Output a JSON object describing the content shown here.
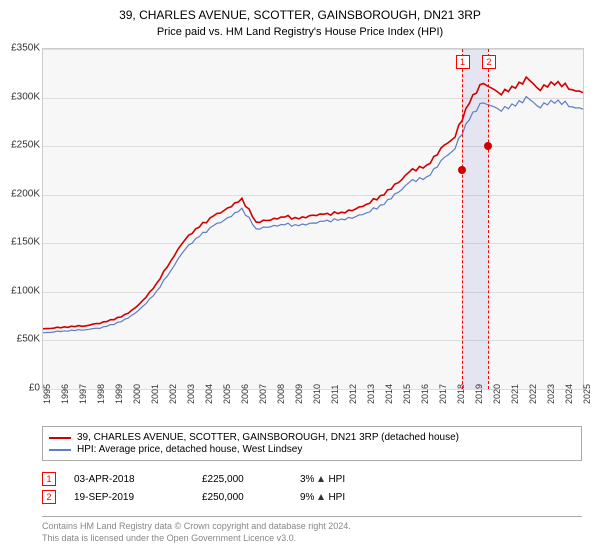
{
  "title": "39, CHARLES AVENUE, SCOTTER, GAINSBOROUGH, DN21 3RP",
  "subtitle": "Price paid vs. HM Land Registry's House Price Index (HPI)",
  "chart": {
    "type": "line",
    "background_color": "#f7f7f7",
    "grid_color": "#dddddd",
    "border_color": "#cccccc",
    "ylim": [
      0,
      350000
    ],
    "ytick_step": 50000,
    "yticks": [
      "£0",
      "£50K",
      "£100K",
      "£150K",
      "£200K",
      "£250K",
      "£300K",
      "£350K"
    ],
    "xrange": [
      1995,
      2025
    ],
    "xticks": [
      1995,
      1996,
      1997,
      1998,
      1999,
      2000,
      2001,
      2002,
      2003,
      2004,
      2005,
      2006,
      2007,
      2008,
      2009,
      2010,
      2011,
      2012,
      2013,
      2014,
      2015,
      2016,
      2017,
      2018,
      2019,
      2020,
      2021,
      2022,
      2023,
      2024,
      2025
    ],
    "series": [
      {
        "name": "property",
        "color": "#d00000",
        "width": 1.6,
        "values": [
          62,
          63,
          64,
          65,
          68,
          72,
          78,
          90,
          108,
          132,
          155,
          168,
          178,
          185,
          195,
          172,
          175,
          178,
          175,
          178,
          180,
          182,
          186,
          192,
          200,
          212,
          226,
          230,
          248,
          260,
          295,
          315,
          305,
          310,
          320,
          308,
          315,
          310,
          305
        ]
      },
      {
        "name": "hpi",
        "color": "#5a7fc4",
        "width": 1.2,
        "values": [
          58,
          59,
          60,
          61,
          63,
          67,
          73,
          84,
          100,
          122,
          145,
          158,
          168,
          175,
          185,
          165,
          168,
          170,
          168,
          170,
          173,
          175,
          178,
          183,
          190,
          202,
          215,
          218,
          235,
          248,
          278,
          295,
          288,
          292,
          300,
          290,
          296,
          292,
          288
        ]
      }
    ],
    "events": [
      {
        "n": "1",
        "year": 2018.25,
        "price": 225000,
        "dot_color": "#d00000"
      },
      {
        "n": "2",
        "year": 2019.72,
        "price": 250000,
        "dot_color": "#d00000"
      }
    ],
    "shade": {
      "from": 2018.25,
      "to": 2019.72,
      "color": "rgba(100,100,200,0.12)"
    }
  },
  "legend": {
    "items": [
      {
        "color": "#d00000",
        "label": "39, CHARLES AVENUE, SCOTTER, GAINSBOROUGH, DN21 3RP (detached house)"
      },
      {
        "color": "#5a7fc4",
        "label": "HPI: Average price, detached house, West Lindsey"
      }
    ]
  },
  "transactions": [
    {
      "n": "1",
      "date": "03-APR-2018",
      "price": "£225,000",
      "pct": "3%",
      "indicator": "HPI"
    },
    {
      "n": "2",
      "date": "19-SEP-2019",
      "price": "£250,000",
      "pct": "9%",
      "indicator": "HPI"
    }
  ],
  "footer": {
    "line1": "Contains HM Land Registry data © Crown copyright and database right 2024.",
    "line2": "This data is licensed under the Open Government Licence v3.0."
  }
}
